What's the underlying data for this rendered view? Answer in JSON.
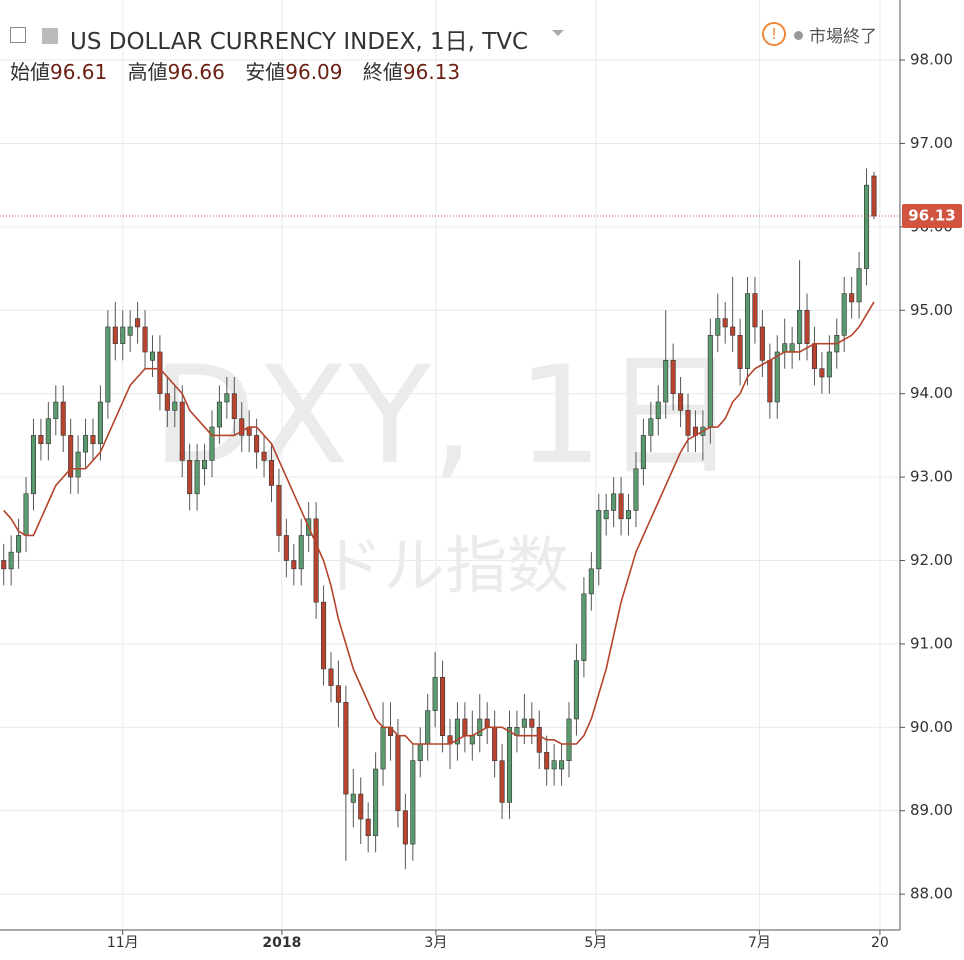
{
  "chart_data": {
    "type": "candlestick",
    "title": "US DOLLAR CURRENCY INDEX, 1日, TVC",
    "legend_labels": [
      "始値",
      "高値",
      "安値",
      "終値"
    ],
    "status": "市場終了",
    "watermark": [
      "DXY, 1日",
      "ドル指数"
    ],
    "up_color": "#5b9a6e",
    "down_color": "#b8432f",
    "wick_color": "#555555",
    "open": [
      92.0,
      91.9,
      92.1,
      92.3,
      92.8,
      93.5,
      93.4,
      93.7,
      93.9,
      93.5,
      93.0,
      93.3,
      93.5,
      93.4,
      93.9,
      94.8,
      94.6,
      94.7,
      94.9,
      94.8,
      94.4,
      94.5,
      94.0,
      93.8,
      93.9,
      93.2,
      92.8,
      93.1,
      93.2,
      93.6,
      93.9,
      94.0,
      93.7,
      93.6,
      93.5,
      93.3,
      93.2,
      92.9,
      92.3,
      92.0,
      91.9,
      92.3,
      92.5,
      91.5,
      90.7,
      90.5,
      90.3,
      89.1,
      89.2,
      88.9,
      88.7,
      89.5,
      90.0,
      89.9,
      89.0,
      88.6,
      89.6,
      89.8,
      90.2,
      90.6,
      89.9,
      89.8,
      90.1,
      89.8,
      89.9,
      90.1,
      90.0,
      89.6,
      89.1,
      89.9,
      90.0,
      90.1,
      90.0,
      89.7,
      89.5,
      89.5,
      89.6,
      90.1,
      90.8,
      91.6,
      91.9,
      92.5,
      92.6,
      92.8,
      92.5,
      92.6,
      93.1,
      93.5,
      93.7,
      93.9,
      94.4,
      94.0,
      93.8,
      93.6,
      93.5,
      93.6,
      94.7,
      94.9,
      94.8,
      94.7,
      94.3,
      95.2,
      94.8,
      94.4,
      93.9,
      94.5,
      94.5,
      94.6,
      95.0,
      94.6,
      94.3,
      94.2,
      94.5,
      94.7,
      95.2,
      95.1,
      95.5,
      96.61
    ],
    "high": [
      92.2,
      92.3,
      92.5,
      93.0,
      93.7,
      93.7,
      93.9,
      94.1,
      94.1,
      93.7,
      93.5,
      93.7,
      93.7,
      94.1,
      95.0,
      95.1,
      95.0,
      95.0,
      95.1,
      95.0,
      94.7,
      94.7,
      94.2,
      94.1,
      94.1,
      93.4,
      93.4,
      93.4,
      93.8,
      94.1,
      94.2,
      94.2,
      93.9,
      93.8,
      93.7,
      93.5,
      93.4,
      93.1,
      92.5,
      92.2,
      92.5,
      92.7,
      92.7,
      91.7,
      90.9,
      90.8,
      90.5,
      89.5,
      89.4,
      89.1,
      89.7,
      90.3,
      90.3,
      90.1,
      89.2,
      89.8,
      90.0,
      90.4,
      90.9,
      90.8,
      90.1,
      90.3,
      90.3,
      90.2,
      90.4,
      90.3,
      90.2,
      89.8,
      90.2,
      90.2,
      90.4,
      90.3,
      90.2,
      89.9,
      89.8,
      89.8,
      90.3,
      91.0,
      91.8,
      92.1,
      92.8,
      92.8,
      93.0,
      93.0,
      92.8,
      93.3,
      93.7,
      93.9,
      94.1,
      95.0,
      94.6,
      94.2,
      94.0,
      93.8,
      93.8,
      94.9,
      95.2,
      95.1,
      95.4,
      94.9,
      95.4,
      95.4,
      95.0,
      94.6,
      94.7,
      94.9,
      94.8,
      95.6,
      95.2,
      94.8,
      94.5,
      94.7,
      94.9,
      95.4,
      95.4,
      95.7,
      96.7,
      96.66
    ],
    "low": [
      91.7,
      91.7,
      91.9,
      92.1,
      92.6,
      93.2,
      93.2,
      93.5,
      93.3,
      92.8,
      92.8,
      93.1,
      93.2,
      93.2,
      93.7,
      94.4,
      94.4,
      94.5,
      94.6,
      94.3,
      94.2,
      93.8,
      93.6,
      93.6,
      93.0,
      92.6,
      92.6,
      92.9,
      93.0,
      93.4,
      93.7,
      93.5,
      93.3,
      93.3,
      93.1,
      93.0,
      92.7,
      92.1,
      91.8,
      91.7,
      91.7,
      92.1,
      91.3,
      90.5,
      90.3,
      90.0,
      88.4,
      88.8,
      88.6,
      88.5,
      88.5,
      89.3,
      89.6,
      88.8,
      88.3,
      88.4,
      89.4,
      89.6,
      90.0,
      89.7,
      89.5,
      89.6,
      89.7,
      89.6,
      89.7,
      89.8,
      89.4,
      88.9,
      88.9,
      89.7,
      89.8,
      89.8,
      89.5,
      89.3,
      89.3,
      89.3,
      89.4,
      89.9,
      90.6,
      91.4,
      91.7,
      92.3,
      92.4,
      92.3,
      92.3,
      92.4,
      92.9,
      93.3,
      93.5,
      93.7,
      93.8,
      93.6,
      93.3,
      93.3,
      93.2,
      93.4,
      94.5,
      94.6,
      94.5,
      94.1,
      94.1,
      94.6,
      94.2,
      93.7,
      93.7,
      94.3,
      94.3,
      94.4,
      94.4,
      94.1,
      94.0,
      94.0,
      94.3,
      94.5,
      94.9,
      94.9,
      95.3,
      96.09
    ],
    "close": [
      91.9,
      92.1,
      92.3,
      92.8,
      93.5,
      93.4,
      93.7,
      93.9,
      93.5,
      93.0,
      93.3,
      93.5,
      93.4,
      93.9,
      94.8,
      94.6,
      94.8,
      94.8,
      94.8,
      94.5,
      94.5,
      94.0,
      93.8,
      93.9,
      93.2,
      92.8,
      93.2,
      93.2,
      93.6,
      93.9,
      94.0,
      93.7,
      93.5,
      93.5,
      93.3,
      93.2,
      92.9,
      92.3,
      92.0,
      91.9,
      92.3,
      92.5,
      91.5,
      90.7,
      90.5,
      90.3,
      89.2,
      89.2,
      88.9,
      88.7,
      89.5,
      90.0,
      89.9,
      89.0,
      88.6,
      89.6,
      89.8,
      90.2,
      90.6,
      89.9,
      89.8,
      90.1,
      89.9,
      89.9,
      90.1,
      90.0,
      89.6,
      89.1,
      90.0,
      90.0,
      90.1,
      90.0,
      89.7,
      89.5,
      89.6,
      89.6,
      90.1,
      90.8,
      91.6,
      91.9,
      92.6,
      92.6,
      92.8,
      92.5,
      92.6,
      93.1,
      93.5,
      93.7,
      93.9,
      94.4,
      94.0,
      93.8,
      93.5,
      93.5,
      93.6,
      94.7,
      94.9,
      94.8,
      94.7,
      94.3,
      95.2,
      94.8,
      94.4,
      93.9,
      94.5,
      94.6,
      94.6,
      95.0,
      94.6,
      94.3,
      94.2,
      94.5,
      94.7,
      95.2,
      95.1,
      95.5,
      96.5,
      96.13
    ],
    "ma": {
      "color": "#b5442b",
      "values": [
        92.6,
        92.5,
        92.35,
        92.3,
        92.3,
        92.5,
        92.7,
        92.9,
        93.0,
        93.1,
        93.1,
        93.1,
        93.2,
        93.3,
        93.5,
        93.7,
        93.9,
        94.1,
        94.2,
        94.3,
        94.3,
        94.3,
        94.2,
        94.1,
        94.0,
        93.8,
        93.7,
        93.6,
        93.5,
        93.5,
        93.5,
        93.5,
        93.55,
        93.6,
        93.6,
        93.5,
        93.4,
        93.2,
        93.0,
        92.8,
        92.6,
        92.4,
        92.2,
        92.0,
        91.7,
        91.3,
        91.0,
        90.7,
        90.5,
        90.3,
        90.1,
        90.0,
        90.0,
        89.9,
        89.9,
        89.8,
        89.8,
        89.8,
        89.8,
        89.8,
        89.8,
        89.85,
        89.9,
        89.9,
        89.95,
        90.0,
        90.0,
        90.0,
        89.95,
        89.9,
        89.9,
        89.9,
        89.9,
        89.85,
        89.85,
        89.8,
        89.8,
        89.8,
        89.9,
        90.1,
        90.4,
        90.7,
        91.1,
        91.5,
        91.8,
        92.1,
        92.3,
        92.5,
        92.7,
        92.9,
        93.1,
        93.3,
        93.45,
        93.5,
        93.55,
        93.6,
        93.6,
        93.7,
        93.9,
        94.0,
        94.2,
        94.3,
        94.35,
        94.4,
        94.45,
        94.5,
        94.5,
        94.5,
        94.55,
        94.6,
        94.6,
        94.6,
        94.6,
        94.65,
        94.7,
        94.8,
        94.95,
        95.1
      ]
    },
    "price_line_color": "#d0543f",
    "xlim": [
      -0.5,
      120.5
    ],
    "xticks": [
      {
        "value": 16,
        "label": "11月"
      },
      {
        "value": 37.4,
        "label": "2018"
      },
      {
        "value": 58.1,
        "label": "3月"
      },
      {
        "value": 79.6,
        "label": "5月"
      },
      {
        "value": 101.6,
        "label": "7月"
      },
      {
        "value": 117.8,
        "label": "20"
      }
    ],
    "ylim": [
      87.57,
      98.72
    ],
    "yticks": [
      {
        "value": 88,
        "label": "88.00"
      },
      {
        "value": 89,
        "label": "89.00"
      },
      {
        "value": 90,
        "label": "90.00"
      },
      {
        "value": 91,
        "label": "91.00"
      },
      {
        "value": 92,
        "label": "92.00"
      },
      {
        "value": 93,
        "label": "93.00"
      },
      {
        "value": 94,
        "label": "94.00"
      },
      {
        "value": 95,
        "label": "95.00"
      },
      {
        "value": 96,
        "label": "96.00"
      },
      {
        "value": 97,
        "label": "97.00"
      },
      {
        "value": 98,
        "label": "98.00"
      }
    ],
    "grid": true
  }
}
